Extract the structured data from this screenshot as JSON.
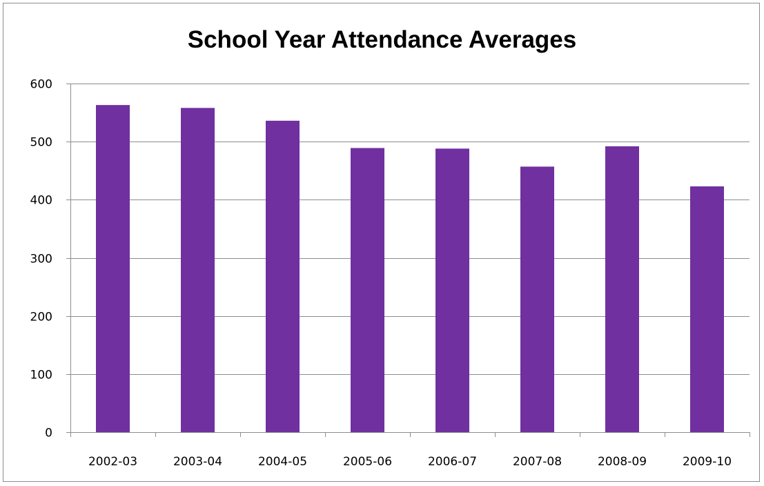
{
  "chart_data": {
    "type": "bar",
    "title": "School Year Attendance Averages",
    "categories": [
      "2002-03",
      "2003-04",
      "2004-05",
      "2005-06",
      "2006-07",
      "2007-08",
      "2008-09",
      "2009-10"
    ],
    "values": [
      563,
      558,
      536,
      489,
      488,
      457,
      492,
      423
    ],
    "ylim": [
      0,
      600
    ],
    "yticks": [
      "0",
      "100",
      "200",
      "300",
      "400",
      "500",
      "600"
    ],
    "grid": true,
    "legend": "none",
    "bar_color": "#7030a0",
    "grid_color": "#8c8c8c"
  }
}
